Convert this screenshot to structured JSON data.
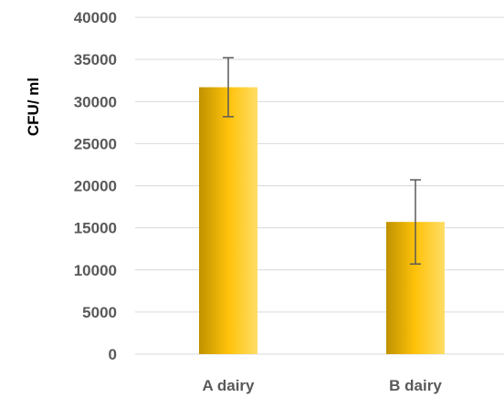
{
  "chart_data": {
    "type": "bar",
    "title": "",
    "xlabel": "",
    "ylabel": "CFU/ ml",
    "categories": [
      "A dairy",
      "B dairy"
    ],
    "values": [
      31700,
      15700
    ],
    "error": [
      3500,
      5000
    ],
    "ylim": [
      0,
      40000
    ],
    "yticks": [
      0,
      5000,
      10000,
      15000,
      20000,
      25000,
      30000,
      35000,
      40000
    ],
    "grid": true,
    "legend": "none",
    "colors": {
      "bar_dark": "#c09200",
      "bar_mid": "#ffc20a",
      "bar_light": "#ffdd66",
      "grid": "#d9d9d9",
      "tick_text": "#595959",
      "error_bar": "#595959"
    }
  }
}
